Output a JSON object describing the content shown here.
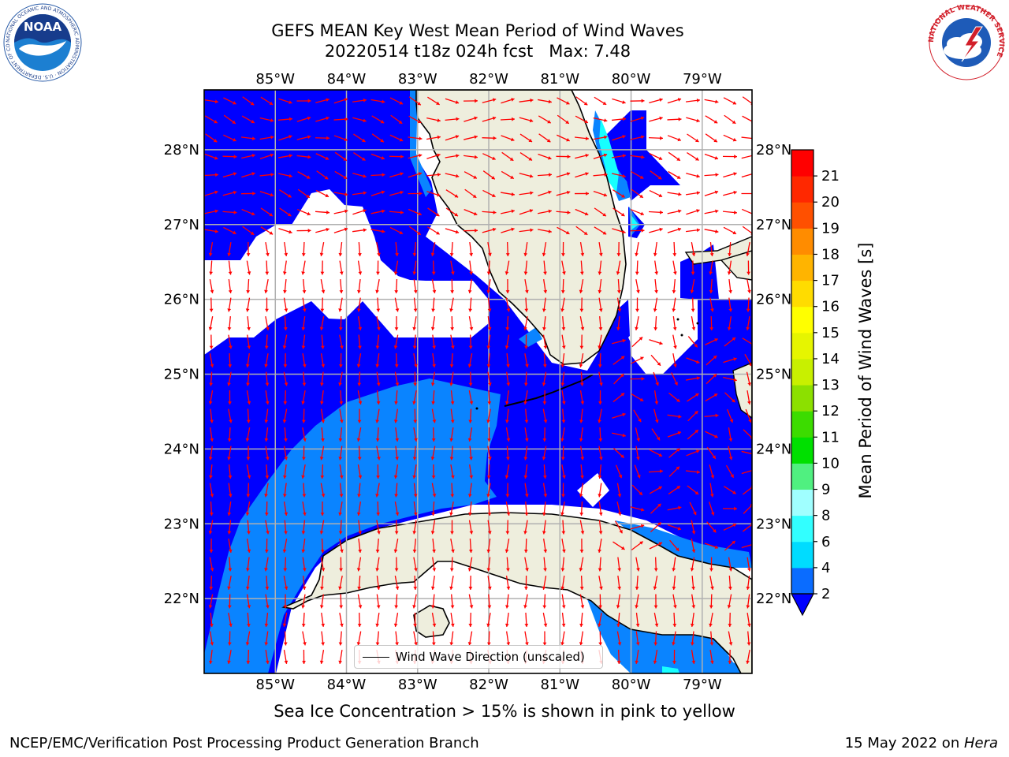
{
  "header": {
    "title_line1": "GEFS MEAN Key West Mean Period of Wind Waves",
    "title_line2": "20220514 t18z 024h fcst   Max: 7.48"
  },
  "map": {
    "lon_labels": [
      "85°W",
      "84°W",
      "83°W",
      "82°W",
      "81°W",
      "80°W",
      "79°W"
    ],
    "lat_labels": [
      "28°N",
      "27°N",
      "26°N",
      "25°N",
      "24°N",
      "23°N",
      "22°N"
    ],
    "extent": {
      "lon_min": -86.0,
      "lon_max": -78.3,
      "lat_min": 21.0,
      "lat_max": 28.8
    },
    "legend_label": "Wind Wave Direction (unscaled)",
    "arrow_color": "#ff0000",
    "land_color": "#eeeedd",
    "field_colors": {
      "2-4": "#0000ff",
      "4-6": "#0a84ff",
      "6-8": "#16ffff"
    }
  },
  "colorbar": {
    "label": "Mean Period of Wind Waves [s]",
    "ticks": [
      "2",
      "4",
      "6",
      "8",
      "9",
      "10",
      "11",
      "12",
      "13",
      "14",
      "15",
      "16",
      "17",
      "18",
      "19",
      "20",
      "21"
    ],
    "colors": [
      "#0a6cff",
      "#00dcff",
      "#32ffff",
      "#a0ffff",
      "#50f080",
      "#00e000",
      "#3cdc00",
      "#8ce000",
      "#c8f000",
      "#e6f500",
      "#ffff00",
      "#ffdc00",
      "#ffb400",
      "#ff8c00",
      "#ff5000",
      "#ff2800",
      "#ff0000"
    ],
    "extend_color": "#0000ff"
  },
  "caption": "Sea Ice Concentration > 15% is shown in pink to yellow",
  "footer": {
    "left": "NCEP/EMC/Verification Post Processing Product Generation Branch",
    "right_date": "15 May 2022 on ",
    "right_host": "Hera"
  },
  "logos": {
    "noaa": "NOAA",
    "noaa_ring": "NATIONAL OCEANIC AND ATMOSPHERIC ADMINISTRATION · U.S. DEPARTMENT OF COMMERCE",
    "nws_ring": "NATIONAL WEATHER SERVICE"
  }
}
